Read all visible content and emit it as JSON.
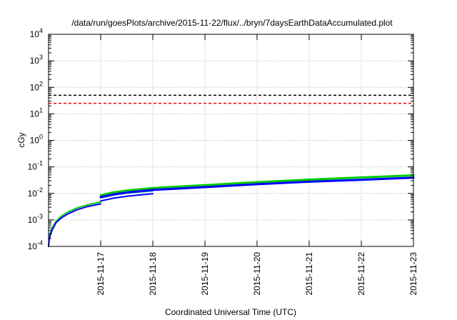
{
  "chart_data": {
    "type": "line",
    "title": "/data/run/goesPlots/archive/2015-11-22/flux/../bryn/7daysEarthDataAccumulated.plot",
    "xlabel": "Coordinated Universal Time (UTC)",
    "ylabel": "cGy",
    "y_scale": "log",
    "ylim_exponents": [
      -4,
      4
    ],
    "y_base": "10",
    "y_tick_exponents": [
      "-4",
      "-3",
      "-2",
      "-1",
      "0",
      "1",
      "2",
      "3",
      "4"
    ],
    "xlim": [
      "2015-11-16",
      "2015-11-23"
    ],
    "x_ticks": [
      "2015-11-17",
      "2015-11-18",
      "2015-11-19",
      "2015-11-20",
      "2015-11-21",
      "2015-11-22",
      "2015-11-23"
    ],
    "grid": true,
    "legend": "none",
    "reference_lines": [
      {
        "y": 50,
        "color": "#000000",
        "dash": true
      },
      {
        "y": 25,
        "color": "#ff0000",
        "dash": true
      }
    ],
    "series": [
      {
        "color": "#00cc00",
        "width": 2,
        "x": [
          "2015-11-16T00:00",
          "2015-11-16T00:20",
          "2015-11-16T01:40",
          "2015-11-16T03:30",
          "2015-11-16T06:00",
          "2015-11-16T09:00",
          "2015-11-16T13:00",
          "2015-11-16T18:00",
          "2015-11-17T00:00"
        ],
        "y": [
          0.0001,
          0.00025,
          0.0005,
          0.0009,
          0.0014,
          0.002,
          0.0028,
          0.0037,
          0.0047
        ]
      },
      {
        "color": "#0000ff",
        "width": 2,
        "x": [
          "2015-11-16T00:00",
          "2015-11-16T00:20",
          "2015-11-16T01:40",
          "2015-11-16T03:30",
          "2015-11-16T06:00",
          "2015-11-16T09:00",
          "2015-11-16T13:00",
          "2015-11-16T18:00",
          "2015-11-17T00:00"
        ],
        "y": [
          0.0001,
          0.0002,
          0.00042,
          0.0008,
          0.0012,
          0.0017,
          0.0024,
          0.0032,
          0.004
        ]
      },
      {
        "color": "#00cc00",
        "width": 3,
        "x": [
          "2015-11-17T00:00",
          "2015-11-17T06:00",
          "2015-11-17T12:00",
          "2015-11-18T00:00",
          "2015-11-19T00:00",
          "2015-11-20T00:00",
          "2015-11-21T00:00",
          "2015-11-22T00:00",
          "2015-11-23T00:00"
        ],
        "y": [
          0.0085,
          0.011,
          0.0128,
          0.016,
          0.0205,
          0.0265,
          0.033,
          0.04,
          0.048
        ]
      },
      {
        "color": "#00aaaa",
        "width": 2,
        "x": [
          "2015-11-17T00:00",
          "2015-11-17T06:00",
          "2015-11-17T12:00",
          "2015-11-18T00:00"
        ],
        "y": [
          0.0068,
          0.0087,
          0.0102,
          0.0125
        ]
      },
      {
        "color": "#0000ff",
        "width": 3,
        "x": [
          "2015-11-17T00:00",
          "2015-11-17T06:00",
          "2015-11-17T12:00",
          "2015-11-18T00:00",
          "2015-11-19T00:00",
          "2015-11-20T00:00",
          "2015-11-21T00:00",
          "2015-11-22T00:00",
          "2015-11-23T00:00"
        ],
        "y": [
          0.0072,
          0.0092,
          0.0108,
          0.0135,
          0.0172,
          0.0222,
          0.0275,
          0.0325,
          0.039
        ]
      },
      {
        "color": "#0000ff",
        "width": 2,
        "x": [
          "2015-11-17T00:00",
          "2015-11-17T06:00",
          "2015-11-17T12:00",
          "2015-11-18T00:00"
        ],
        "y": [
          0.0052,
          0.0066,
          0.0078,
          0.0098
        ]
      }
    ]
  }
}
